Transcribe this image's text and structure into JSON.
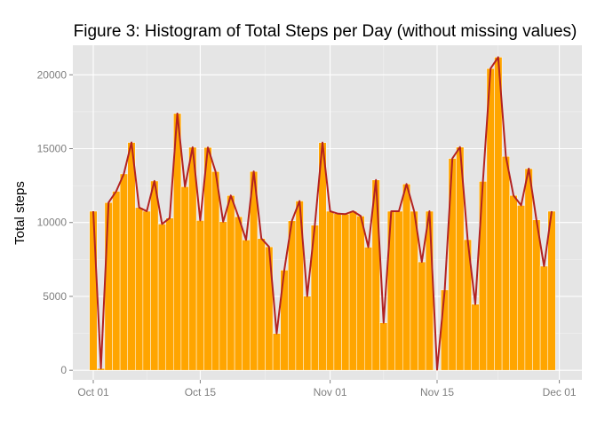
{
  "chart_data": {
    "type": "bar",
    "title": "Figure 3: Histogram of Total Steps per Day (without missing values)",
    "xlabel": "",
    "ylabel": "Total steps",
    "x_start_date": "2012-10-01",
    "x_tick_labels": [
      "Oct 01",
      "Oct 15",
      "Nov 01",
      "Nov 15",
      "Dec 01"
    ],
    "y_ticks": [
      0,
      5000,
      10000,
      15000,
      20000
    ],
    "ylim": [
      -650,
      22000
    ],
    "grid": true,
    "legend": "none",
    "colors": {
      "bar": "#FFA500",
      "line": "#B22222",
      "panel": "#E5E5E5",
      "grid": "#FFFFFF"
    },
    "series": [
      {
        "values": [
          10766,
          126,
          11352,
          12116,
          13294,
          15420,
          11015,
          10766,
          12811,
          9900,
          10304,
          17382,
          12426,
          15098,
          10139,
          15084,
          13452,
          10056,
          11829,
          10395,
          8821,
          13460,
          8918,
          8355,
          2492,
          6778,
          10119,
          11458,
          5018,
          9819,
          15414,
          10766,
          10600,
          10571,
          10766,
          10439,
          8334,
          12883,
          3219,
          10766,
          10766,
          12608,
          10765,
          7336,
          10766,
          41,
          5441,
          14339,
          15110,
          8841,
          4472,
          12787,
          20427,
          21194,
          14478,
          11834,
          11162,
          13646,
          10183,
          7047,
          10766
        ]
      }
    ]
  }
}
